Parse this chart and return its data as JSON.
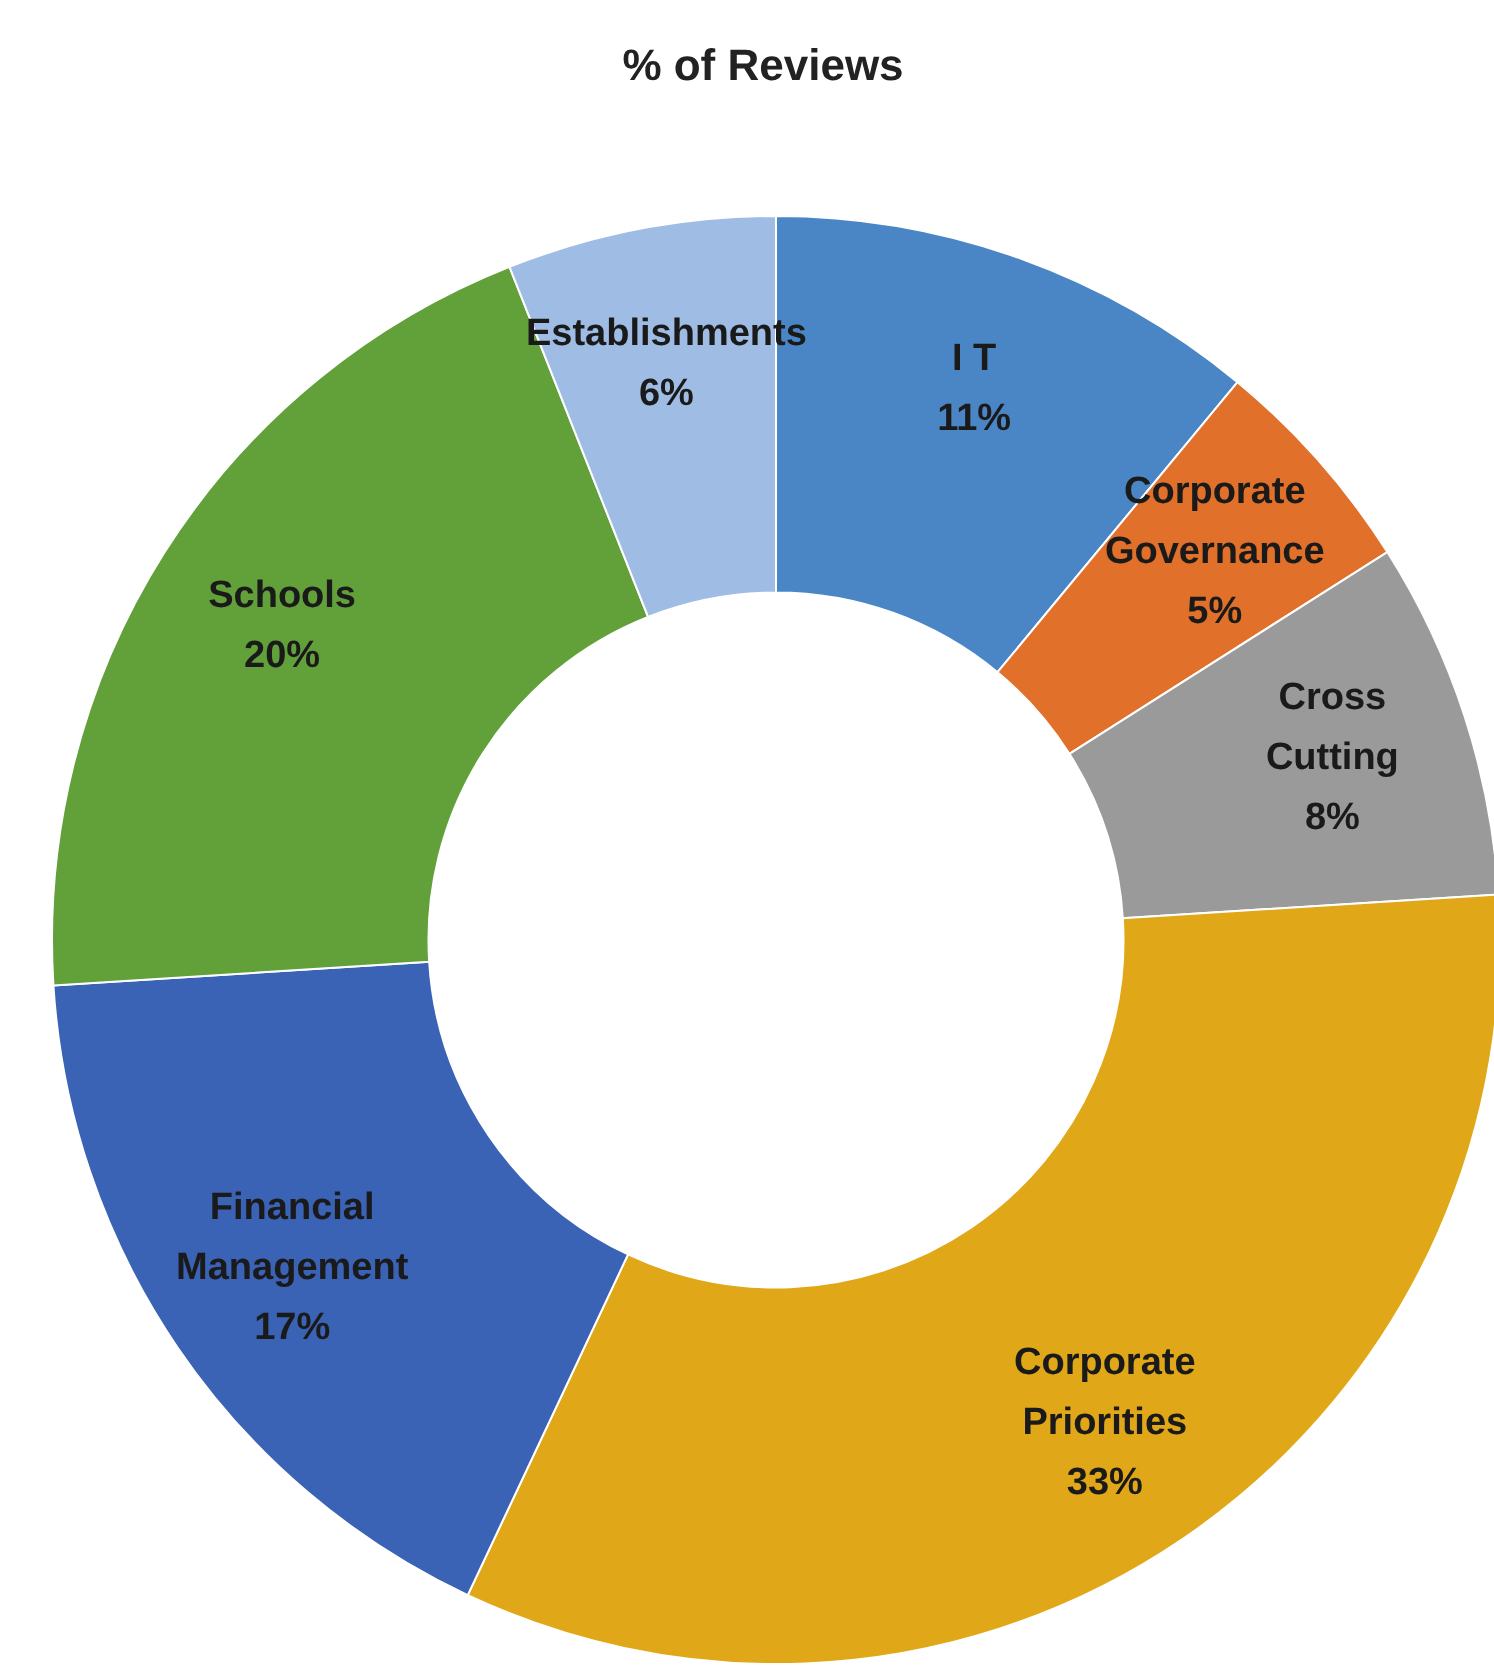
{
  "chart_data": {
    "type": "donut",
    "title": "% of Reviews",
    "categories": [
      "I T",
      "Corporate Governance",
      "Cross Cutting",
      "Corporate Priorities",
      "Financial Management",
      "Schools",
      "Establishments"
    ],
    "values": [
      11,
      5,
      8,
      33,
      17,
      20,
      6
    ],
    "colors": [
      "#4a86c5",
      "#e0702a",
      "#9a9a9a",
      "#e0a818",
      "#3a62b5",
      "#62a03a",
      "#9fbde4"
    ],
    "value_labels": [
      "11%",
      "5%",
      "8%",
      "33%",
      "17%",
      "20%",
      "6%"
    ]
  }
}
